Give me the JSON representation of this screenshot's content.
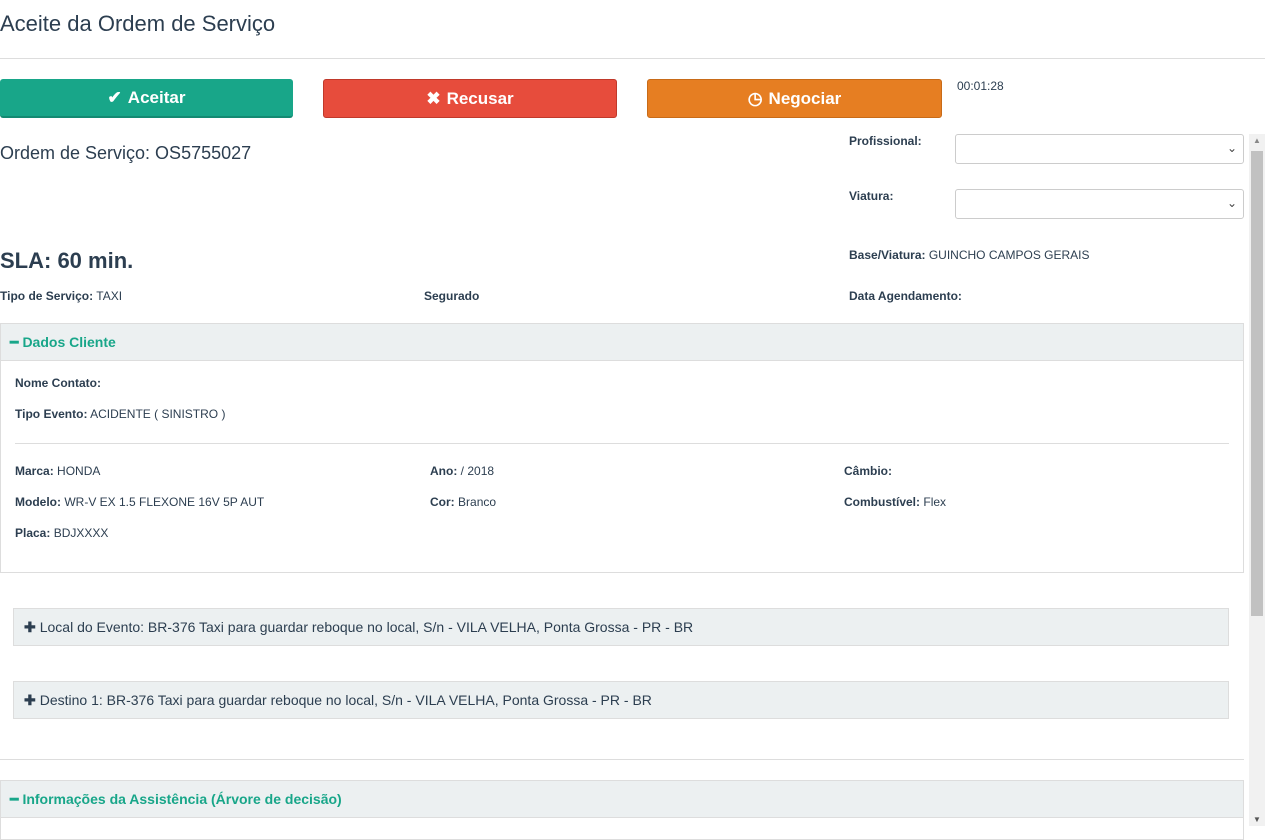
{
  "title": "Aceite da Ordem de Serviço",
  "buttons": {
    "accept": "Aceitar",
    "refuse": "Recusar",
    "negotiate": "Negociar"
  },
  "timer": "00:01:28",
  "order": "Ordem de Serviço: OS5755027",
  "sla": "SLA: 60 min.",
  "fields": {
    "profissional_label": "Profissional:",
    "profissional_value": "",
    "viatura_label": "Viatura:",
    "viatura_value": "",
    "base_label": "Base/Viatura:",
    "base_value": "GUINCHO CAMPOS GERAIS",
    "tipo_servico_label": "Tipo de Serviço:",
    "tipo_servico_value": "TAXI",
    "segurado_label": "Segurado",
    "data_agendamento_label": "Data Agendamento:"
  },
  "dados_cliente": {
    "title": "Dados Cliente",
    "nome_label": "Nome Contato:",
    "tipo_evento_label": "Tipo Evento:",
    "tipo_evento_value": "ACIDENTE ( SINISTRO )",
    "marca_label": "Marca:",
    "marca_value": "HONDA",
    "ano_label": "Ano:",
    "ano_value": "/ 2018",
    "cambio_label": "Câmbio:",
    "modelo_label": "Modelo:",
    "modelo_value": "WR-V EX 1.5 FLEXONE 16V 5P AUT",
    "cor_label": "Cor:",
    "cor_value": "Branco",
    "combustivel_label": "Combustível:",
    "combustivel_value": "Flex",
    "placa_label": "Placa:",
    "placa_value": "BDJXXXX"
  },
  "local_evento": "Local do Evento: BR-376 Taxi para guardar reboque no local, S/n - VILA VELHA, Ponta Grossa - PR - BR",
  "destino": "Destino 1: BR-376 Taxi para guardar reboque no local, S/n - VILA VELHA, Ponta Grossa - PR - BR",
  "info_assistencia": "Informações da Assistência (Árvore de decisão)",
  "colors": {
    "accent": "#18a689",
    "danger": "#e74c3c",
    "warning": "#e67e22"
  }
}
